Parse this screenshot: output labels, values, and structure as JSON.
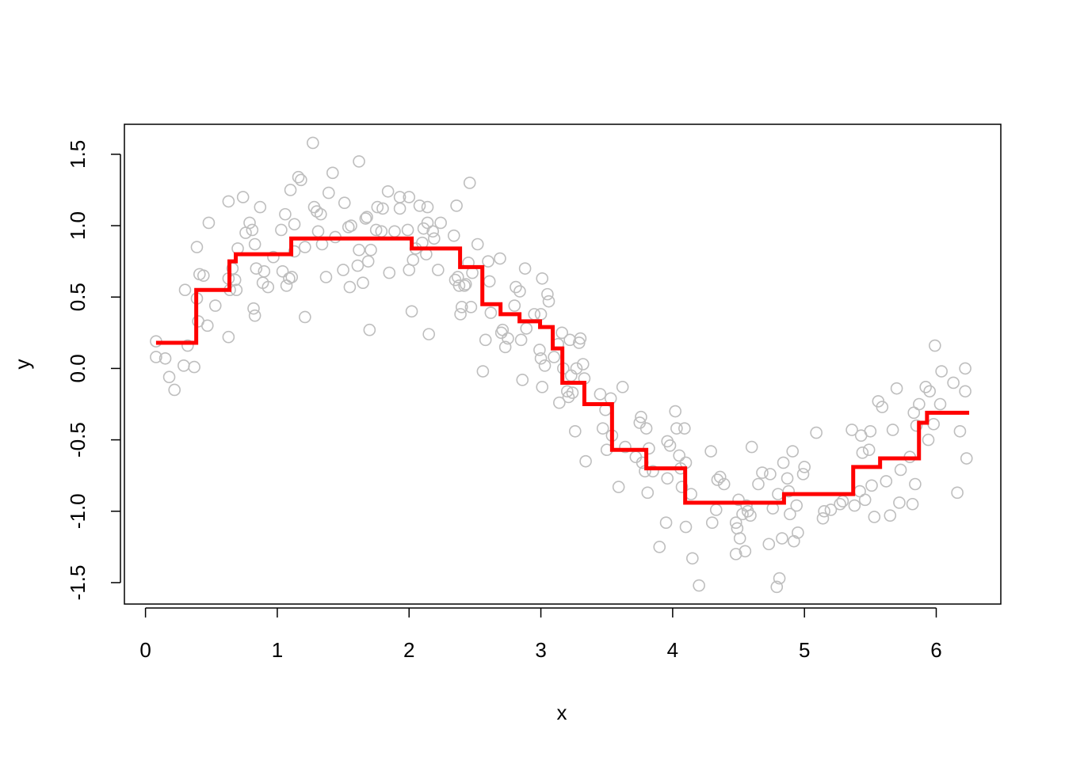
{
  "chart_data": {
    "type": "scatter",
    "x_label": "x",
    "y_label": "y",
    "xlim": [
      -0.16,
      6.49
    ],
    "ylim": [
      -1.65,
      1.71
    ],
    "xticks": [
      0,
      1,
      2,
      3,
      4,
      5,
      6
    ],
    "yticks": [
      {
        "value": -1.5,
        "label": "-1.5"
      },
      {
        "value": -1,
        "label": "-1.0"
      },
      {
        "value": -0.5,
        "label": "-0.5"
      },
      {
        "value": 0,
        "label": "0.0"
      },
      {
        "value": 0.5,
        "label": "0.5"
      },
      {
        "value": 1,
        "label": "1.0"
      },
      {
        "value": 1.5,
        "label": "1.5"
      }
    ],
    "series": [
      {
        "type": "scatter",
        "color": "#bebebe",
        "x": [
          0.08,
          0.08,
          0.15,
          0.18,
          0.22,
          0.29,
          0.3,
          0.32,
          0.37,
          0.39,
          0.39,
          0.4,
          0.41,
          0.44,
          0.47,
          0.48,
          0.53,
          0.63,
          0.63,
          0.63,
          0.64,
          0.66,
          0.68,
          0.69,
          0.7,
          0.74,
          0.76,
          0.79,
          0.81,
          0.82,
          0.83,
          0.83,
          0.84,
          0.87,
          0.89,
          0.9,
          0.93,
          0.97,
          1.03,
          1.04,
          1.06,
          1.07,
          1.09,
          1.1,
          1.11,
          1.13,
          1.13,
          1.16,
          1.18,
          1.21,
          1.21,
          1.27,
          1.28,
          1.3,
          1.31,
          1.33,
          1.34,
          1.37,
          1.39,
          1.42,
          1.44,
          1.5,
          1.51,
          1.54,
          1.55,
          1.56,
          1.61,
          1.62,
          1.62,
          1.65,
          1.67,
          1.68,
          1.69,
          1.7,
          1.71,
          1.75,
          1.76,
          1.79,
          1.8,
          1.84,
          1.85,
          1.89,
          1.93,
          1.93,
          1.99,
          2.0,
          2.0,
          2.02,
          2.03,
          2.05,
          2.08,
          2.1,
          2.11,
          2.13,
          2.14,
          2.14,
          2.15,
          2.18,
          2.19,
          2.22,
          2.24,
          2.34,
          2.35,
          2.36,
          2.37,
          2.38,
          2.39,
          2.4,
          2.42,
          2.43,
          2.45,
          2.46,
          2.47,
          2.48,
          2.52,
          2.56,
          2.58,
          2.6,
          2.61,
          2.62,
          2.69,
          2.7,
          2.71,
          2.73,
          2.75,
          2.8,
          2.81,
          2.84,
          2.85,
          2.86,
          2.88,
          2.89,
          2.95,
          2.99,
          3.0,
          3.0,
          3.01,
          3.01,
          3.03,
          3.05,
          3.06,
          3.1,
          3.13,
          3.14,
          3.16,
          3.17,
          3.2,
          3.21,
          3.22,
          3.23,
          3.24,
          3.26,
          3.27,
          3.29,
          3.3,
          3.32,
          3.33,
          3.34,
          3.45,
          3.47,
          3.49,
          3.5,
          3.53,
          3.54,
          3.59,
          3.62,
          3.64,
          3.72,
          3.75,
          3.76,
          3.77,
          3.79,
          3.8,
          3.81,
          3.82,
          3.85,
          3.9,
          3.95,
          3.96,
          3.96,
          3.98,
          4.02,
          4.03,
          4.05,
          4.06,
          4.07,
          4.09,
          4.1,
          4.1,
          4.14,
          4.15,
          4.2,
          4.29,
          4.3,
          4.33,
          4.34,
          4.36,
          4.39,
          4.48,
          4.48,
          4.49,
          4.5,
          4.51,
          4.53,
          4.55,
          4.56,
          4.57,
          4.59,
          4.6,
          4.65,
          4.68,
          4.73,
          4.74,
          4.76,
          4.79,
          4.8,
          4.81,
          4.83,
          4.84,
          4.87,
          4.88,
          4.89,
          4.91,
          4.92,
          4.94,
          4.95,
          4.99,
          5.0,
          5.09,
          5.14,
          5.15,
          5.2,
          5.27,
          5.29,
          5.36,
          5.38,
          5.42,
          5.43,
          5.44,
          5.46,
          5.49,
          5.5,
          5.51,
          5.53,
          5.56,
          5.59,
          5.62,
          5.65,
          5.67,
          5.7,
          5.72,
          5.73,
          5.8,
          5.82,
          5.83,
          5.84,
          5.85,
          5.87,
          5.92,
          5.94,
          5.95,
          5.98,
          5.99,
          6.03,
          6.04,
          6.13,
          6.16,
          6.18,
          6.22,
          6.22,
          6.23
        ],
        "values": [
          0.19,
          0.08,
          0.07,
          -0.06,
          -0.15,
          0.02,
          0.55,
          0.16,
          0.01,
          0.85,
          0.49,
          0.33,
          0.66,
          0.65,
          0.3,
          1.02,
          0.44,
          0.22,
          1.17,
          0.63,
          0.55,
          0.7,
          0.62,
          0.55,
          0.84,
          1.2,
          0.95,
          1.02,
          0.97,
          0.42,
          0.37,
          0.87,
          0.7,
          1.13,
          0.6,
          0.68,
          0.57,
          0.78,
          0.97,
          0.68,
          1.08,
          0.58,
          0.63,
          1.25,
          0.64,
          1.01,
          0.82,
          1.34,
          1.32,
          0.36,
          0.85,
          1.58,
          1.13,
          1.1,
          0.96,
          1.08,
          0.87,
          0.64,
          1.23,
          1.37,
          0.92,
          0.69,
          1.16,
          0.99,
          0.57,
          1.0,
          0.72,
          0.83,
          1.45,
          0.6,
          1.05,
          1.06,
          0.75,
          0.27,
          0.83,
          0.97,
          1.13,
          0.96,
          1.12,
          1.24,
          0.67,
          0.96,
          1.2,
          1.12,
          0.97,
          0.69,
          1.2,
          0.4,
          0.76,
          0.84,
          1.14,
          0.88,
          0.98,
          0.8,
          1.02,
          1.13,
          0.24,
          0.96,
          0.91,
          0.69,
          1.02,
          0.93,
          0.62,
          1.14,
          0.64,
          0.58,
          0.38,
          0.43,
          0.58,
          0.59,
          0.74,
          1.3,
          0.43,
          0.67,
          0.87,
          -0.02,
          0.2,
          0.75,
          0.61,
          0.39,
          0.77,
          0.25,
          0.27,
          0.15,
          0.21,
          0.44,
          0.57,
          0.54,
          0.2,
          -0.08,
          0.7,
          0.28,
          0.38,
          0.13,
          0.38,
          0.07,
          0.63,
          -0.13,
          0.02,
          0.52,
          0.47,
          0.08,
          0.17,
          -0.24,
          0.25,
          0.0,
          -0.16,
          -0.2,
          0.2,
          -0.05,
          -0.17,
          -0.44,
          0.0,
          0.18,
          0.21,
          0.03,
          -0.07,
          -0.65,
          -0.18,
          -0.42,
          -0.29,
          -0.57,
          -0.21,
          -0.47,
          -0.83,
          -0.13,
          -0.55,
          -0.62,
          -0.38,
          -0.34,
          -0.66,
          -0.72,
          -0.42,
          -0.87,
          -0.56,
          -0.72,
          -1.25,
          -1.08,
          -0.51,
          -0.77,
          -0.54,
          -0.3,
          -0.42,
          -0.61,
          -0.7,
          -0.83,
          -0.42,
          -0.66,
          -1.11,
          -0.88,
          -1.33,
          -1.52,
          -0.58,
          -1.08,
          -0.99,
          -0.78,
          -0.76,
          -0.81,
          -1.3,
          -1.08,
          -1.12,
          -0.92,
          -1.19,
          -1.02,
          -1.28,
          -0.96,
          -1.0,
          -1.03,
          -0.55,
          -0.81,
          -0.73,
          -1.23,
          -0.74,
          -0.98,
          -1.53,
          -0.88,
          -1.47,
          -1.19,
          -0.66,
          -0.77,
          -0.86,
          -1.02,
          -0.58,
          -1.21,
          -0.96,
          -1.15,
          -0.74,
          -0.69,
          -0.45,
          -1.05,
          -1.0,
          -0.99,
          -0.95,
          -0.93,
          -0.43,
          -0.96,
          -0.86,
          -0.47,
          -0.59,
          -0.92,
          -0.57,
          -0.44,
          -0.82,
          -1.04,
          -0.23,
          -0.27,
          -0.79,
          -1.03,
          -0.43,
          -0.14,
          -0.94,
          -0.71,
          -0.62,
          -0.95,
          -0.31,
          -0.81,
          -0.4,
          -0.25,
          -0.13,
          -0.5,
          -0.16,
          -0.39,
          0.16,
          -0.25,
          -0.02,
          -0.1,
          -0.87,
          -0.44,
          0.0,
          -0.16,
          -0.63
        ]
      },
      {
        "type": "step",
        "color": "#ff0000",
        "x": [
          0.08,
          0.385,
          0.637,
          0.685,
          1.106,
          2.02,
          2.387,
          2.556,
          2.694,
          2.838,
          2.994,
          3.09,
          3.163,
          3.33,
          3.54,
          3.8,
          4.095,
          4.845,
          5.37,
          5.574,
          5.869,
          5.93,
          6.25
        ],
        "values": [
          0.18,
          0.55,
          0.75,
          0.8,
          0.91,
          0.84,
          0.71,
          0.45,
          0.38,
          0.33,
          0.29,
          0.14,
          -0.1,
          -0.25,
          -0.57,
          -0.7,
          -0.94,
          -0.88,
          -0.69,
          -0.63,
          -0.38,
          -0.31,
          -0.31
        ]
      }
    ]
  }
}
